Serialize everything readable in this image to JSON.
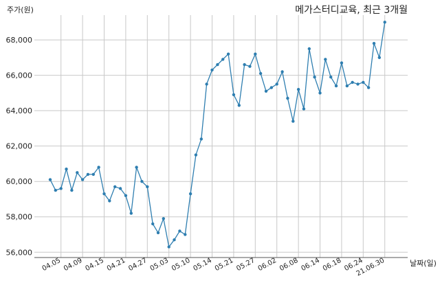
{
  "chart_data": {
    "type": "line",
    "title": "메가스터디교육, 최근 3개월",
    "ylabel": "주가(원)",
    "xlabel": "날짜(일)",
    "ylim": [
      55700,
      69400
    ],
    "yticks": [
      56000,
      58000,
      60000,
      62000,
      64000,
      66000,
      68000
    ],
    "ytick_labels": [
      "56,000",
      "58,000",
      "60,000",
      "62,000",
      "64,000",
      "66,000",
      "68,000"
    ],
    "xticks": [
      {
        "label": "04.05",
        "index": 2
      },
      {
        "label": "04.09",
        "index": 6
      },
      {
        "label": "04.15",
        "index": 10
      },
      {
        "label": "04.21",
        "index": 14
      },
      {
        "label": "04.27",
        "index": 18
      },
      {
        "label": "05.03",
        "index": 22
      },
      {
        "label": "05.10",
        "index": 26
      },
      {
        "label": "05.14",
        "index": 30
      },
      {
        "label": "05.21",
        "index": 34
      },
      {
        "label": "05.27",
        "index": 38
      },
      {
        "label": "06.02",
        "index": 42
      },
      {
        "label": "06.08",
        "index": 46
      },
      {
        "label": "06.14",
        "index": 50
      },
      {
        "label": "06.18",
        "index": 54
      },
      {
        "label": "06.24",
        "index": 58
      },
      {
        "label": "21.06.30",
        "index": 62
      }
    ],
    "grid": true,
    "color": "#2e7eb0",
    "values": [
      60100,
      59500,
      59600,
      60700,
      59500,
      60500,
      60100,
      60400,
      60400,
      60800,
      59300,
      58900,
      59700,
      59600,
      59200,
      58200,
      60800,
      60000,
      59700,
      57600,
      57100,
      57900,
      56300,
      56700,
      57200,
      57000,
      59300,
      61500,
      62400,
      65500,
      66300,
      66600,
      66900,
      67200,
      64900,
      64300,
      66600,
      66500,
      67200,
      66100,
      65100,
      65300,
      65500,
      66200,
      64700,
      63400,
      65200,
      64100,
      67500,
      65900,
      65000,
      66900,
      65900,
      65400,
      66700,
      65400,
      65600,
      65500,
      65600,
      65300,
      67800,
      67000,
      69000
    ]
  }
}
